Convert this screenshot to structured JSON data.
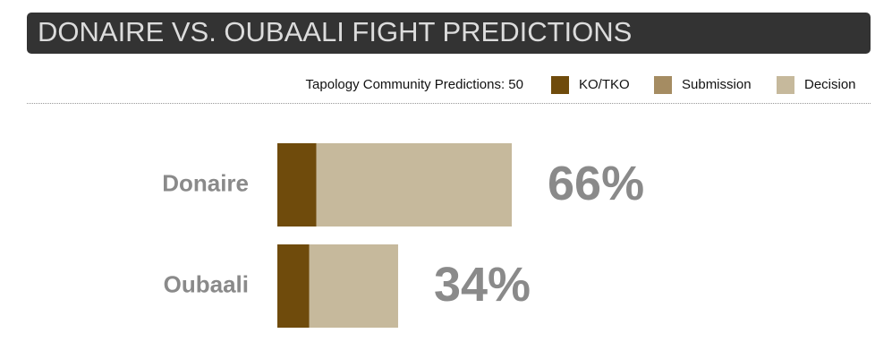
{
  "chart_data": {
    "type": "bar",
    "orientation": "horizontal",
    "stacked": true,
    "title": "DONAIRE VS. OUBAALI FIGHT PREDICTIONS",
    "subtitle": "Tapology Community Predictions: 50",
    "categories": [
      "Donaire",
      "Oubaali"
    ],
    "series": [
      {
        "name": "KO/TKO",
        "color": "#6f4b0c",
        "values": [
          11,
          9
        ]
      },
      {
        "name": "Submission",
        "color": "#a58c62",
        "values": [
          0,
          0
        ]
      },
      {
        "name": "Decision",
        "color": "#c6b99c",
        "values": [
          55,
          25
        ]
      }
    ],
    "totals": {
      "values": [
        66,
        34
      ],
      "value_labels": [
        "66%",
        "34%"
      ]
    },
    "xlim": [
      0,
      100
    ]
  }
}
